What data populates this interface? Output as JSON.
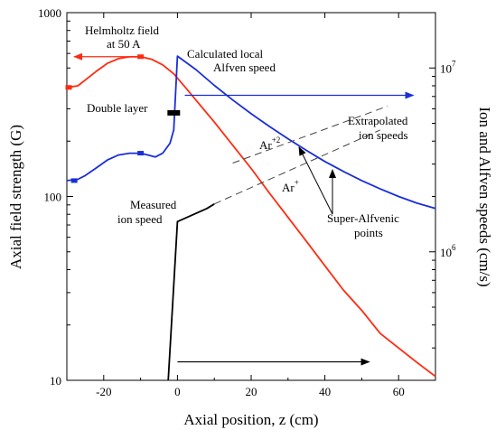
{
  "chart_data": {
    "type": "line",
    "xlabel": "Axial position, z (cm)",
    "ylabel_left": "Axial field strength (G)",
    "ylabel_right": "Ion and Alfven speeds (cm/s)",
    "xlim": [
      -30,
      70
    ],
    "ylim_left": [
      10,
      1000
    ],
    "ylim_right": [
      200000,
      20000000
    ],
    "yscale_left": "log",
    "yscale_right": "log",
    "x_ticks": [
      -20,
      0,
      20,
      40,
      60
    ],
    "x_tick_labels": [
      "-20",
      "0",
      "20",
      "40",
      "60"
    ],
    "y_left_ticks": [
      10,
      100,
      1000
    ],
    "y_left_tick_labels": [
      "10",
      "100",
      "1000"
    ],
    "y_right_tick_labels": [
      {
        "value": 1000000,
        "base": "10",
        "exp": "6"
      },
      {
        "value": 10000000,
        "base": "10",
        "exp": "7"
      }
    ],
    "series": [
      {
        "axis": "left",
        "color": "#ff2a10",
        "x": [
          -30,
          -27,
          -25,
          -22,
          -19,
          -16,
          -13,
          -10,
          -7,
          -4,
          -1,
          2,
          5,
          10,
          15,
          20,
          25,
          30,
          35,
          40,
          45,
          50,
          55,
          60,
          65,
          70
        ],
        "y": [
          392,
          400,
          430,
          480,
          530,
          562,
          575,
          576,
          558,
          520,
          465,
          395,
          335,
          254,
          190,
          142,
          104,
          77,
          57,
          42,
          31,
          24,
          18,
          15,
          12.5,
          10.5
        ]
      },
      {
        "axis": "left",
        "color": "#1a2ed8",
        "x": [
          -30,
          -27,
          -25,
          -22,
          -19,
          -16,
          -13,
          -10,
          -8,
          -6,
          -4,
          -2,
          -1,
          0,
          5,
          10,
          15,
          20,
          25,
          30,
          35,
          40,
          45,
          50,
          55,
          60,
          65,
          70
        ],
        "y": [
          122,
          124,
          130,
          143,
          158,
          168,
          172,
          172,
          168,
          164,
          172,
          195,
          230,
          580,
          490,
          402,
          335,
          282,
          240,
          206,
          178,
          155,
          137,
          122,
          110,
          100,
          92,
          86
        ]
      },
      {
        "axis": "left",
        "color": "#000000",
        "x": [
          -2.5,
          0,
          8,
          10
        ],
        "y": [
          10,
          73,
          86,
          91
        ]
      },
      {
        "axis": "left",
        "color": "#444444",
        "dashed": true,
        "x": [
          10,
          55
        ],
        "y": [
          91,
          230
        ]
      },
      {
        "axis": "left",
        "color": "#444444",
        "dashed": true,
        "x": [
          15,
          57
        ],
        "y": [
          152,
          310
        ]
      }
    ],
    "markers": [
      {
        "color": "#ff2a10",
        "x": [
          -29.5,
          -10
        ],
        "y": [
          392,
          576
        ]
      },
      {
        "color": "#1a2ed8",
        "x": [
          -28,
          -10
        ],
        "y": [
          122,
          172
        ]
      },
      {
        "color": "#000000",
        "x": [
          -1
        ],
        "y": [
          285
        ]
      }
    ],
    "arrows": [
      {
        "color": "#ff2a10",
        "x_from": -10,
        "x_to": -28,
        "y": 576
      },
      {
        "color": "#1a2ed8",
        "x_from": 2,
        "x_to": 64,
        "y": 355
      },
      {
        "color": "#000000",
        "x_from": 0,
        "x_to": 52,
        "y": 12.6
      }
    ],
    "annotations": [
      {
        "lines": [
          "Helmholtz field",
          "at 50 A"
        ]
      },
      {
        "lines": [
          "Calculated local",
          "Alfven speed"
        ]
      },
      {
        "lines": [
          "Double layer"
        ]
      },
      {
        "lines": [
          "Extrapolated",
          "ion speeds"
        ]
      },
      {
        "lines": [
          "Measured",
          "ion speed"
        ]
      },
      {
        "lines": [
          "Super-Alfvenic",
          "points"
        ]
      }
    ],
    "species_labels": [
      {
        "base": "Ar",
        "sup": "+2"
      },
      {
        "base": "Ar",
        "sup": "+"
      }
    ]
  }
}
